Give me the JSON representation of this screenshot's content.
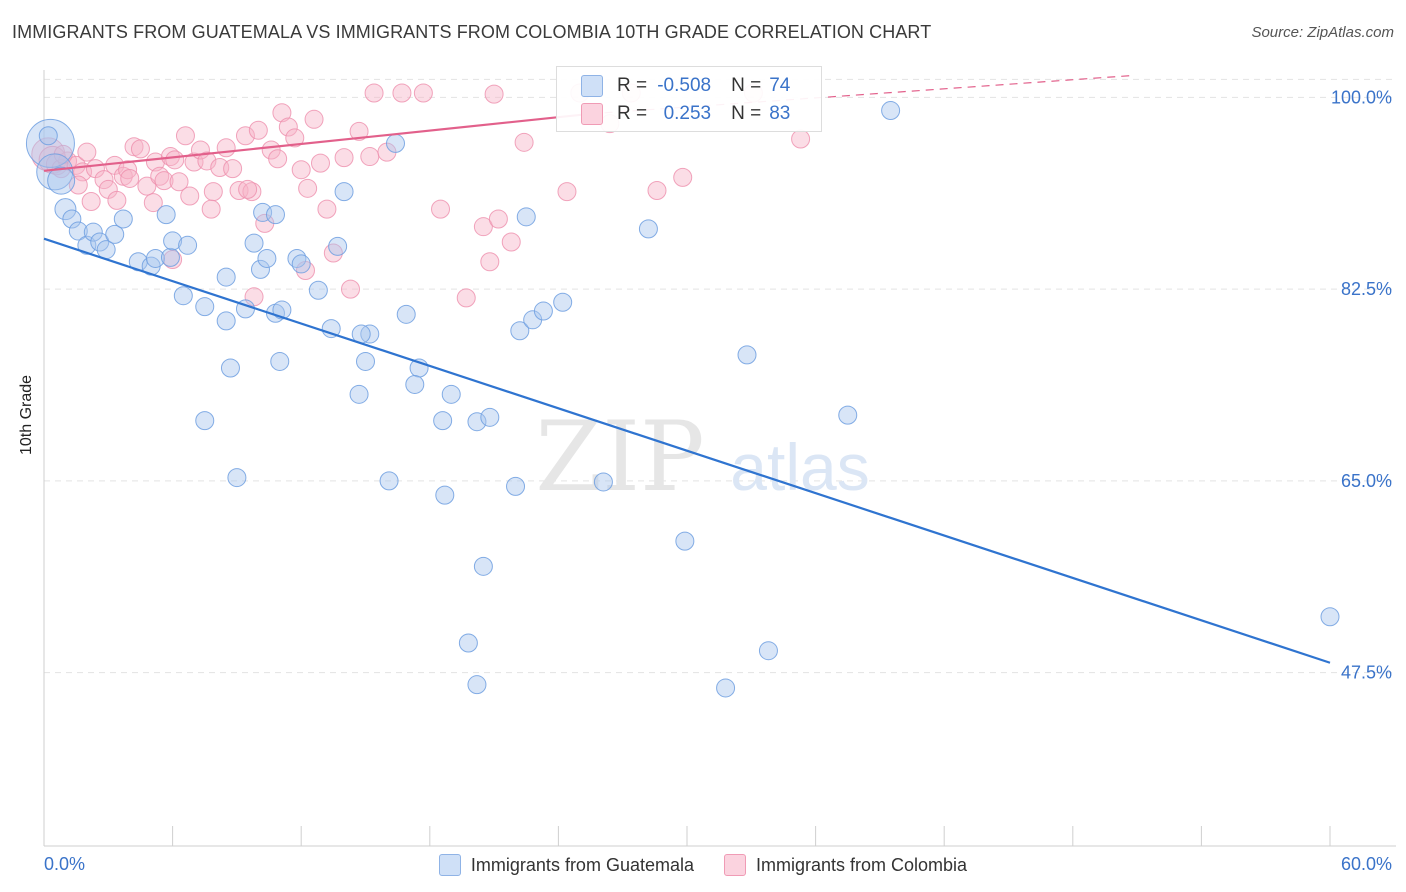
{
  "title": "IMMIGRANTS FROM GUATEMALA VS IMMIGRANTS FROM COLOMBIA 10TH GRADE CORRELATION CHART",
  "source": "Source: ZipAtlas.com",
  "watermark": {
    "zip": "ZIP",
    "atlas": "atlas"
  },
  "legend_top": {
    "r_label": "R =",
    "n_label": "N =",
    "rows": [
      {
        "r": "-0.508",
        "n": "74",
        "color": "#a9c6ee"
      },
      {
        "r": "0.253",
        "n": "83",
        "color": "#f6b4c7"
      }
    ]
  },
  "chart_data": {
    "type": "scatter",
    "title": "IMMIGRANTS FROM GUATEMALA VS IMMIGRANTS FROM COLOMBIA 10TH GRADE CORRELATION CHART",
    "xlabel": "",
    "ylabel": "10th Grade",
    "xlim": [
      0,
      60
    ],
    "ylim": [
      33.5,
      102.5
    ],
    "x_tick_labels": [
      "0.0%",
      "60.0%"
    ],
    "y_ticks": [
      47.5,
      65.0,
      82.5,
      100.0
    ],
    "y_tick_labels": [
      "47.5%",
      "65.0%",
      "82.5%",
      "100.0%"
    ],
    "grid": true,
    "legend_position": "bottom",
    "series": [
      {
        "name": "Immigrants from Guatemala",
        "color": "#a9c6ee",
        "line_color": "#2f74d0",
        "trend": {
          "x": [
            0,
            60
          ],
          "y": [
            87.1,
            48.4
          ]
        },
        "points": [
          [
            0.3,
            95.8
          ],
          [
            0.5,
            93.2
          ],
          [
            0.8,
            92.4
          ],
          [
            1.0,
            89.8
          ],
          [
            1.3,
            88.9
          ],
          [
            1.6,
            87.8
          ],
          [
            2.0,
            86.5
          ],
          [
            2.3,
            87.7
          ],
          [
            2.6,
            86.8
          ],
          [
            2.9,
            86.1
          ],
          [
            3.3,
            87.5
          ],
          [
            3.7,
            88.9
          ],
          [
            4.4,
            85.0
          ],
          [
            5.0,
            84.6
          ],
          [
            5.2,
            85.3
          ],
          [
            5.7,
            89.3
          ],
          [
            5.9,
            85.4
          ],
          [
            6.0,
            86.9
          ],
          [
            6.7,
            86.5
          ],
          [
            6.5,
            81.9
          ],
          [
            7.5,
            80.9
          ],
          [
            8.5,
            83.6
          ],
          [
            8.7,
            75.3
          ],
          [
            7.5,
            70.5
          ],
          [
            9.0,
            65.3
          ],
          [
            8.5,
            79.6
          ],
          [
            9.4,
            80.7
          ],
          [
            10.1,
            84.3
          ],
          [
            10.4,
            85.3
          ],
          [
            9.8,
            86.7
          ],
          [
            10.8,
            80.3
          ],
          [
            11.0,
            75.9
          ],
          [
            10.2,
            89.5
          ],
          [
            11.8,
            85.3
          ],
          [
            12.0,
            84.8
          ],
          [
            11.1,
            80.6
          ],
          [
            12.8,
            82.4
          ],
          [
            13.4,
            78.9
          ],
          [
            13.7,
            86.4
          ],
          [
            14.0,
            91.4
          ],
          [
            15.2,
            78.4
          ],
          [
            15.0,
            75.9
          ],
          [
            16.1,
            65.0
          ],
          [
            16.4,
            95.8
          ],
          [
            16.9,
            80.2
          ],
          [
            14.8,
            78.4
          ],
          [
            14.7,
            72.9
          ],
          [
            17.5,
            75.3
          ],
          [
            17.3,
            73.8
          ],
          [
            18.6,
            70.5
          ],
          [
            18.7,
            63.7
          ],
          [
            19.0,
            72.9
          ],
          [
            20.2,
            70.4
          ],
          [
            20.8,
            70.8
          ],
          [
            22.0,
            64.5
          ],
          [
            22.2,
            78.7
          ],
          [
            22.8,
            79.7
          ],
          [
            20.5,
            57.2
          ],
          [
            20.2,
            46.4
          ],
          [
            22.5,
            89.1
          ],
          [
            23.3,
            80.5
          ],
          [
            24.2,
            81.3
          ],
          [
            26.1,
            64.9
          ],
          [
            28.2,
            88.0
          ],
          [
            29.9,
            59.5
          ],
          [
            32.8,
            76.5
          ],
          [
            37.5,
            71.0
          ],
          [
            39.5,
            98.8
          ],
          [
            60.0,
            52.6
          ],
          [
            31.8,
            46.1
          ],
          [
            33.8,
            49.5
          ],
          [
            19.8,
            50.2
          ],
          [
            0.2,
            96.5
          ],
          [
            10.8,
            89.3
          ]
        ],
        "sizes": [
          32,
          24,
          18,
          14,
          12,
          12,
          12,
          12,
          12,
          12,
          12,
          12,
          12,
          12,
          12,
          12,
          12,
          12,
          12,
          12,
          12,
          12,
          12,
          12,
          12,
          12,
          12,
          12,
          12,
          12,
          12,
          12,
          12,
          12,
          12,
          12,
          12,
          12,
          12,
          12,
          12,
          12,
          12,
          12,
          12,
          12,
          12,
          12,
          12,
          12,
          12,
          12,
          12,
          12,
          12,
          12,
          12,
          12,
          12,
          12,
          12,
          12,
          12,
          12,
          12,
          12,
          12,
          12,
          12,
          12,
          12,
          12,
          12,
          12
        ]
      },
      {
        "name": "Immigrants from Colombia",
        "color": "#f6b4c7",
        "line_color": "#e2608b",
        "trend": {
          "x": [
            0,
            25.5
          ],
          "y": [
            93.3,
            98.5
          ]
        },
        "trend_extension": {
          "x": [
            25.5,
            50.8
          ],
          "y": [
            98.5,
            102.0
          ]
        },
        "points": [
          [
            0.2,
            94.8
          ],
          [
            0.4,
            94.3
          ],
          [
            0.6,
            93.9
          ],
          [
            0.8,
            93.5
          ],
          [
            1.1,
            94.2
          ],
          [
            1.5,
            93.8
          ],
          [
            1.8,
            93.2
          ],
          [
            2.0,
            95.0
          ],
          [
            2.4,
            93.5
          ],
          [
            2.8,
            92.5
          ],
          [
            3.0,
            91.6
          ],
          [
            3.3,
            93.8
          ],
          [
            3.7,
            92.8
          ],
          [
            3.9,
            93.4
          ],
          [
            4.2,
            95.5
          ],
          [
            4.5,
            95.3
          ],
          [
            4.8,
            91.9
          ],
          [
            5.2,
            94.1
          ],
          [
            5.4,
            92.8
          ],
          [
            5.6,
            92.4
          ],
          [
            5.9,
            94.6
          ],
          [
            6.1,
            94.3
          ],
          [
            6.3,
            92.3
          ],
          [
            6.6,
            96.5
          ],
          [
            7.0,
            94.1
          ],
          [
            7.3,
            95.2
          ],
          [
            7.6,
            94.2
          ],
          [
            7.9,
            91.4
          ],
          [
            8.2,
            93.6
          ],
          [
            8.5,
            95.4
          ],
          [
            8.8,
            93.5
          ],
          [
            9.1,
            91.5
          ],
          [
            9.4,
            96.5
          ],
          [
            9.7,
            91.4
          ],
          [
            10.0,
            97.0
          ],
          [
            10.3,
            88.5
          ],
          [
            10.6,
            95.2
          ],
          [
            10.9,
            94.4
          ],
          [
            11.1,
            98.6
          ],
          [
            11.4,
            97.3
          ],
          [
            11.7,
            96.3
          ],
          [
            12.0,
            93.4
          ],
          [
            12.3,
            91.7
          ],
          [
            12.6,
            98.0
          ],
          [
            12.9,
            94.0
          ],
          [
            13.2,
            89.8
          ],
          [
            13.5,
            85.8
          ],
          [
            14.0,
            94.5
          ],
          [
            14.7,
            96.9
          ],
          [
            15.2,
            94.6
          ],
          [
            15.4,
            100.4
          ],
          [
            16.0,
            95.0
          ],
          [
            16.7,
            100.4
          ],
          [
            17.7,
            100.4
          ],
          [
            18.5,
            89.8
          ],
          [
            19.7,
            81.7
          ],
          [
            20.5,
            88.2
          ],
          [
            20.8,
            85.0
          ],
          [
            21.2,
            88.9
          ],
          [
            21.8,
            86.8
          ],
          [
            22.4,
            95.9
          ],
          [
            25.0,
            100.4
          ],
          [
            26.4,
            97.6
          ],
          [
            27.4,
            100.4
          ],
          [
            29.8,
            92.7
          ],
          [
            33.1,
            100.4
          ],
          [
            35.3,
            96.2
          ],
          [
            4.0,
            92.6
          ],
          [
            5.1,
            90.4
          ],
          [
            6.8,
            91.0
          ],
          [
            7.8,
            89.8
          ],
          [
            9.5,
            91.6
          ],
          [
            12.2,
            84.2
          ],
          [
            14.3,
            82.5
          ],
          [
            21.0,
            100.3
          ],
          [
            24.4,
            91.4
          ],
          [
            28.6,
            91.5
          ],
          [
            2.2,
            90.5
          ],
          [
            6.0,
            85.2
          ],
          [
            9.8,
            81.8
          ],
          [
            3.4,
            90.6
          ],
          [
            1.6,
            92.0
          ],
          [
            0.9,
            94.8
          ]
        ],
        "sizes": [
          22,
          18,
          14,
          12,
          12,
          12,
          12,
          12,
          12,
          12,
          12,
          12,
          12,
          12,
          12,
          12,
          12,
          12,
          12,
          12,
          12,
          12,
          12,
          12,
          12,
          12,
          12,
          12,
          12,
          12,
          12,
          12,
          12,
          12,
          12,
          12,
          12,
          12,
          12,
          12,
          12,
          12,
          12,
          12,
          12,
          12,
          12,
          12,
          12,
          12,
          12,
          12,
          12,
          12,
          12,
          12,
          12,
          12,
          12,
          12,
          12,
          12,
          12,
          12,
          12,
          12,
          12,
          12,
          12,
          12,
          12,
          12,
          12,
          12,
          12,
          12,
          12,
          12,
          12,
          12,
          12,
          12,
          12
        ]
      }
    ]
  }
}
